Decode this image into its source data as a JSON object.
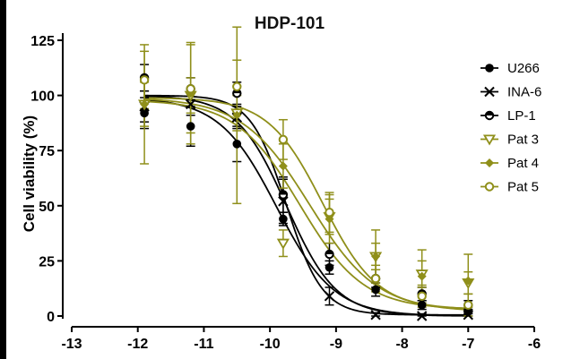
{
  "chart_data": {
    "type": "scatter",
    "title": "HDP-101",
    "xlabel": "",
    "ylabel": "Cell viability (%)",
    "xlim": [
      -13,
      -6
    ],
    "ylim": [
      0,
      125
    ],
    "xticks": [
      -13,
      -12,
      -11,
      -10,
      -9,
      -8,
      -7,
      -6
    ],
    "yticks": [
      0,
      25,
      50,
      75,
      100,
      125
    ],
    "legend_position": "right",
    "x": [
      -11.9,
      -11.2,
      -10.5,
      -9.8,
      -9.1,
      -8.4,
      -7.7,
      -7.0
    ],
    "series": [
      {
        "name": "U266",
        "marker": "filled-circle",
        "color": "#000000",
        "values": [
          92,
          86,
          78,
          44,
          22,
          12,
          5,
          2
        ],
        "errors": [
          7,
          9,
          8,
          3,
          3,
          3,
          2,
          1
        ],
        "curve": {
          "top": 99,
          "bottom": 0,
          "logEC50": -9.9,
          "hill": -1.0
        }
      },
      {
        "name": "INA-6",
        "marker": "x",
        "color": "#000000",
        "values": [
          95,
          96,
          90,
          52,
          9,
          0.5,
          0,
          0.5
        ],
        "errors": [
          7,
          5,
          5,
          10,
          4,
          1,
          1,
          1
        ],
        "curve": {
          "top": 100,
          "bottom": 0.5,
          "logEC50": -9.75,
          "hill": -1.6
        }
      },
      {
        "name": "LP-1",
        "marker": "half-circle",
        "color": "#000000",
        "values": [
          108,
          103,
          101,
          55,
          28,
          17,
          10,
          5
        ],
        "errors": [
          6,
          5,
          5,
          8,
          5,
          4,
          3,
          2
        ],
        "curve": {
          "top": 100,
          "bottom": 0,
          "logEC50": -9.75,
          "hill": -1.15
        }
      },
      {
        "name": "Pat 3",
        "marker": "open-triangle",
        "color": "#8f8f1a",
        "values": [
          96,
          100,
          92,
          33,
          45,
          27,
          19,
          15
        ],
        "errors": [
          10,
          8,
          8,
          6,
          8,
          6,
          6,
          5
        ],
        "curve": {
          "top": 98,
          "bottom": 3,
          "logEC50": -9.55,
          "hill": -0.9
        }
      },
      {
        "name": "Pat 4",
        "marker": "filled-diamond",
        "color": "#8f8f1a",
        "values": [
          96,
          101,
          91,
          68,
          44,
          27,
          18,
          16
        ],
        "errors": [
          27,
          23,
          40,
          10,
          11,
          12,
          12,
          12
        ],
        "curve": {
          "top": 99,
          "bottom": 2,
          "logEC50": -9.4,
          "hill": -0.85
        }
      },
      {
        "name": "Pat 5",
        "marker": "open-circle",
        "color": "#8f8f1a",
        "values": [
          107,
          103,
          104,
          80,
          47,
          17,
          9,
          5
        ],
        "errors": [
          13,
          20,
          12,
          9,
          9,
          6,
          5,
          5
        ],
        "curve": {
          "top": 99,
          "bottom": 3,
          "logEC50": -9.2,
          "hill": -1.05
        }
      }
    ]
  }
}
